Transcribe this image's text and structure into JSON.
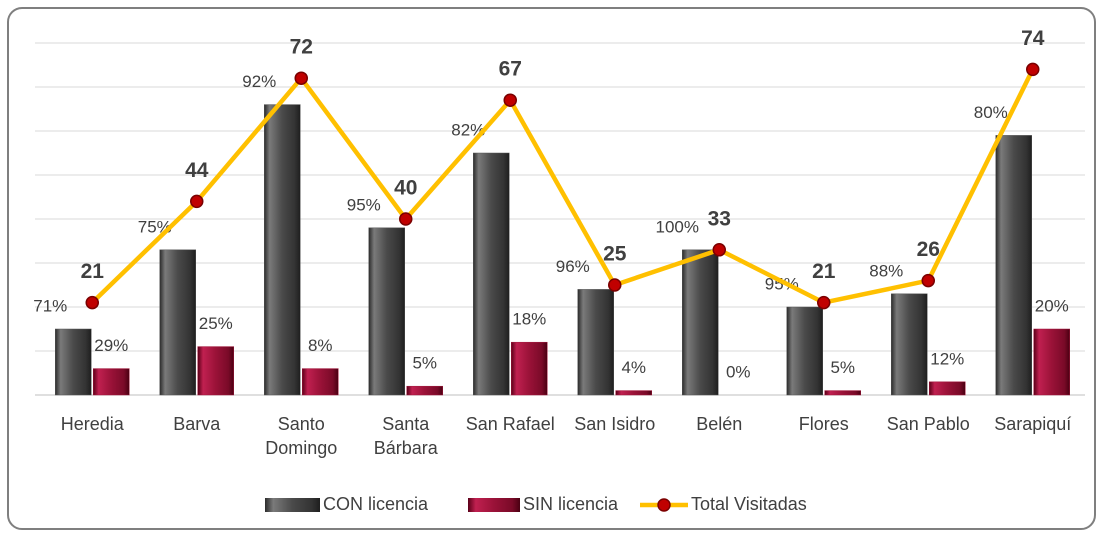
{
  "chart_data": {
    "type": "bar_line",
    "categories": [
      [
        "Heredia"
      ],
      [
        "Barva"
      ],
      [
        "Santo",
        "Domingo"
      ],
      [
        "Santa",
        "Bárbara"
      ],
      [
        "San Rafael"
      ],
      [
        "San Isidro"
      ],
      [
        "Belén"
      ],
      [
        "Flores"
      ],
      [
        "San Pablo"
      ],
      [
        "Sarapiquí"
      ]
    ],
    "series": [
      {
        "name": "CON licencia",
        "type": "bar",
        "color": "#555555",
        "values": [
          15,
          33,
          66,
          38,
          55,
          24,
          33,
          20,
          23,
          59
        ],
        "share_labels": [
          "71%",
          "75%",
          "92%",
          "95%",
          "82%",
          "96%",
          "100%",
          "95%",
          "88%",
          "80%"
        ]
      },
      {
        "name": "SIN licencia",
        "type": "bar",
        "color": "#a0163a",
        "values": [
          6,
          11,
          6,
          2,
          12,
          1,
          0,
          1,
          3,
          15
        ],
        "share_labels": [
          "29%",
          "25%",
          "8%",
          "5%",
          "18%",
          "4%",
          "0%",
          "5%",
          "12%",
          "20%"
        ]
      },
      {
        "name": "Total Visitadas",
        "type": "line",
        "color": "#ffc000",
        "marker_color": "#c00000",
        "values": [
          21,
          44,
          72,
          40,
          67,
          25,
          33,
          21,
          26,
          74
        ]
      }
    ],
    "ylim": [
      0,
      80
    ],
    "yticks": [
      0,
      10,
      20,
      30,
      40,
      50,
      60,
      70,
      80
    ],
    "grid": true,
    "legend": "bottom"
  }
}
